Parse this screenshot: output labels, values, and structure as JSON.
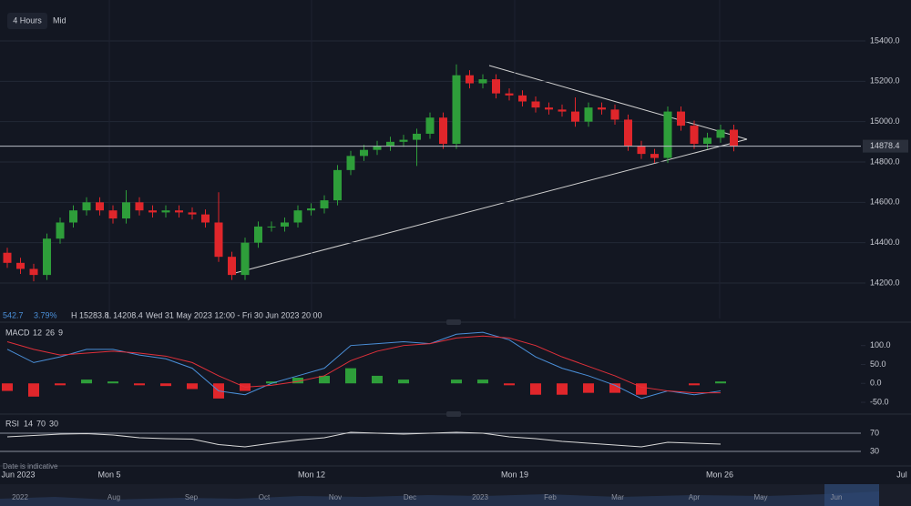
{
  "toolbar": {
    "interval": "4 Hours",
    "price_type": "Mid"
  },
  "info": {
    "change": "542.7",
    "change_pct": "3.79%",
    "high": "H 15283.8",
    "low": "L 14208.4",
    "range": "Wed 31 May 2023 12:00 - Fri 30 Jun 2023 20:00"
  },
  "note": "Date is indicative",
  "time_axis": [
    "Jun 2023",
    "Mon 5",
    "Mon 12",
    "Mon 19",
    "Mon 26",
    "Jul"
  ],
  "navigator": [
    "2022",
    "Aug",
    "Sep",
    "Oct",
    "Nov",
    "Dec",
    "2023",
    "Feb",
    "Mar",
    "Apr",
    "May",
    "Jun"
  ],
  "chart_data": [
    {
      "type": "candlestick",
      "up_color": "#2e9e3a",
      "down_color": "#e0262b",
      "grid": true,
      "ylim": [
        14024,
        15603
      ],
      "yticks": [
        {
          "value": 14200,
          "label": "14200.0"
        },
        {
          "value": 14400,
          "label": "14400.0"
        },
        {
          "value": 14600,
          "label": "14600.0"
        },
        {
          "value": 14800,
          "label": "14800.0"
        },
        {
          "value": 15000,
          "label": "15000.0"
        },
        {
          "value": 15200,
          "label": "15200.0"
        },
        {
          "value": 15400,
          "label": "15400.0"
        }
      ],
      "open": [
        14350,
        14300,
        14270,
        14240,
        14420,
        14500,
        14560,
        14600,
        14560,
        14520,
        14600,
        14560,
        14550,
        14560,
        14550,
        14540,
        14500,
        14330,
        14240,
        14400,
        14480,
        14480,
        14500,
        14560,
        14570,
        14610,
        14760,
        14830,
        14860,
        14880,
        14900,
        14910,
        14940,
        15020,
        14890,
        15230,
        15190,
        15210,
        15140,
        15130,
        15100,
        15070,
        15060,
        15050,
        15000,
        15070,
        15060,
        15010,
        14880,
        14840,
        14820,
        15050,
        14980,
        14890,
        14920,
        14960
      ],
      "high": [
        14375,
        14325,
        14295,
        14445,
        14525,
        14585,
        14625,
        14625,
        14585,
        14660,
        14625,
        14585,
        14585,
        14585,
        14575,
        14565,
        14650,
        14355,
        14425,
        14505,
        14505,
        14525,
        14585,
        14595,
        14635,
        14785,
        14855,
        14885,
        14905,
        14925,
        14935,
        14965,
        15045,
        15045,
        15283.8,
        15255,
        15235,
        15235,
        15165,
        15155,
        15125,
        15095,
        15085,
        15120,
        15095,
        15095,
        15085,
        15035,
        14905,
        14865,
        15075,
        15075,
        15005,
        14945,
        14985,
        14985
      ],
      "low": [
        14275,
        14245,
        14208.4,
        14215,
        14395,
        14475,
        14535,
        14535,
        14495,
        14495,
        14535,
        14525,
        14525,
        14525,
        14515,
        14475,
        14305,
        14215,
        14215,
        14375,
        14455,
        14455,
        14475,
        14535,
        14545,
        14585,
        14735,
        14805,
        14835,
        14855,
        14875,
        14780,
        14915,
        14865,
        14865,
        15165,
        15165,
        15115,
        15105,
        15075,
        15045,
        15035,
        15025,
        14975,
        14975,
        15035,
        14985,
        14855,
        14815,
        14795,
        14795,
        14955,
        14865,
        14865,
        14895,
        14853
      ],
      "close": [
        14300,
        14270,
        14240,
        14420,
        14500,
        14560,
        14600,
        14560,
        14520,
        14600,
        14560,
        14550,
        14560,
        14550,
        14540,
        14500,
        14330,
        14240,
        14400,
        14480,
        14480,
        14500,
        14560,
        14570,
        14610,
        14760,
        14830,
        14860,
        14880,
        14900,
        14910,
        14940,
        15020,
        14890,
        15230,
        15190,
        15210,
        15140,
        15130,
        15100,
        15070,
        15060,
        15050,
        15000,
        15070,
        15060,
        15010,
        14880,
        14840,
        14820,
        15050,
        14980,
        14890,
        14920,
        14960,
        14878.4
      ]
    },
    {
      "type": "macd",
      "title": "MACD",
      "params": [
        12,
        26,
        9
      ],
      "ylim": [
        -74,
        157
      ],
      "yticks": [
        {
          "value": 100,
          "label": "100.0"
        },
        {
          "value": 50,
          "label": "50.0"
        },
        {
          "value": 0,
          "label": "0.0"
        },
        {
          "value": -50,
          "label": "-50.0"
        }
      ],
      "series": [
        {
          "color": "#4a8fd8",
          "values": [
            90,
            55,
            70,
            90,
            90,
            75,
            65,
            40,
            -20,
            -30,
            0,
            20,
            40,
            100,
            105,
            110,
            105,
            130,
            135,
            115,
            70,
            40,
            20,
            -5,
            -40,
            -20,
            -30,
            -20
          ]
        },
        {
          "color": "#e0303a",
          "values": [
            110,
            90,
            75,
            80,
            85,
            80,
            72,
            55,
            20,
            -10,
            -5,
            5,
            20,
            60,
            85,
            100,
            105,
            120,
            125,
            120,
            100,
            70,
            45,
            20,
            -10,
            -20,
            -25,
            -25
          ]
        }
      ],
      "histogram": {
        "up_color": "#2e9e3a",
        "down_color": "#e0262b",
        "values": [
          -20,
          -35,
          -5,
          10,
          5,
          -5,
          -7,
          -15,
          -40,
          -20,
          5,
          15,
          20,
          40,
          20,
          10,
          0,
          10,
          10,
          -5,
          -30,
          -30,
          -25,
          -25,
          -30,
          0,
          -5,
          5
        ]
      }
    },
    {
      "type": "rsi",
      "title": "RSI",
      "params": [
        14,
        70,
        30
      ],
      "ylim": [
        6,
        106
      ],
      "yticks": [
        70,
        30
      ],
      "color": "#d8d8d8",
      "values": [
        62,
        65,
        68,
        69,
        66,
        60,
        58,
        57,
        45,
        40,
        48,
        55,
        60,
        72,
        70,
        68,
        70,
        72,
        70,
        62,
        58,
        52,
        48,
        44,
        40,
        50,
        48,
        46
      ]
    }
  ]
}
